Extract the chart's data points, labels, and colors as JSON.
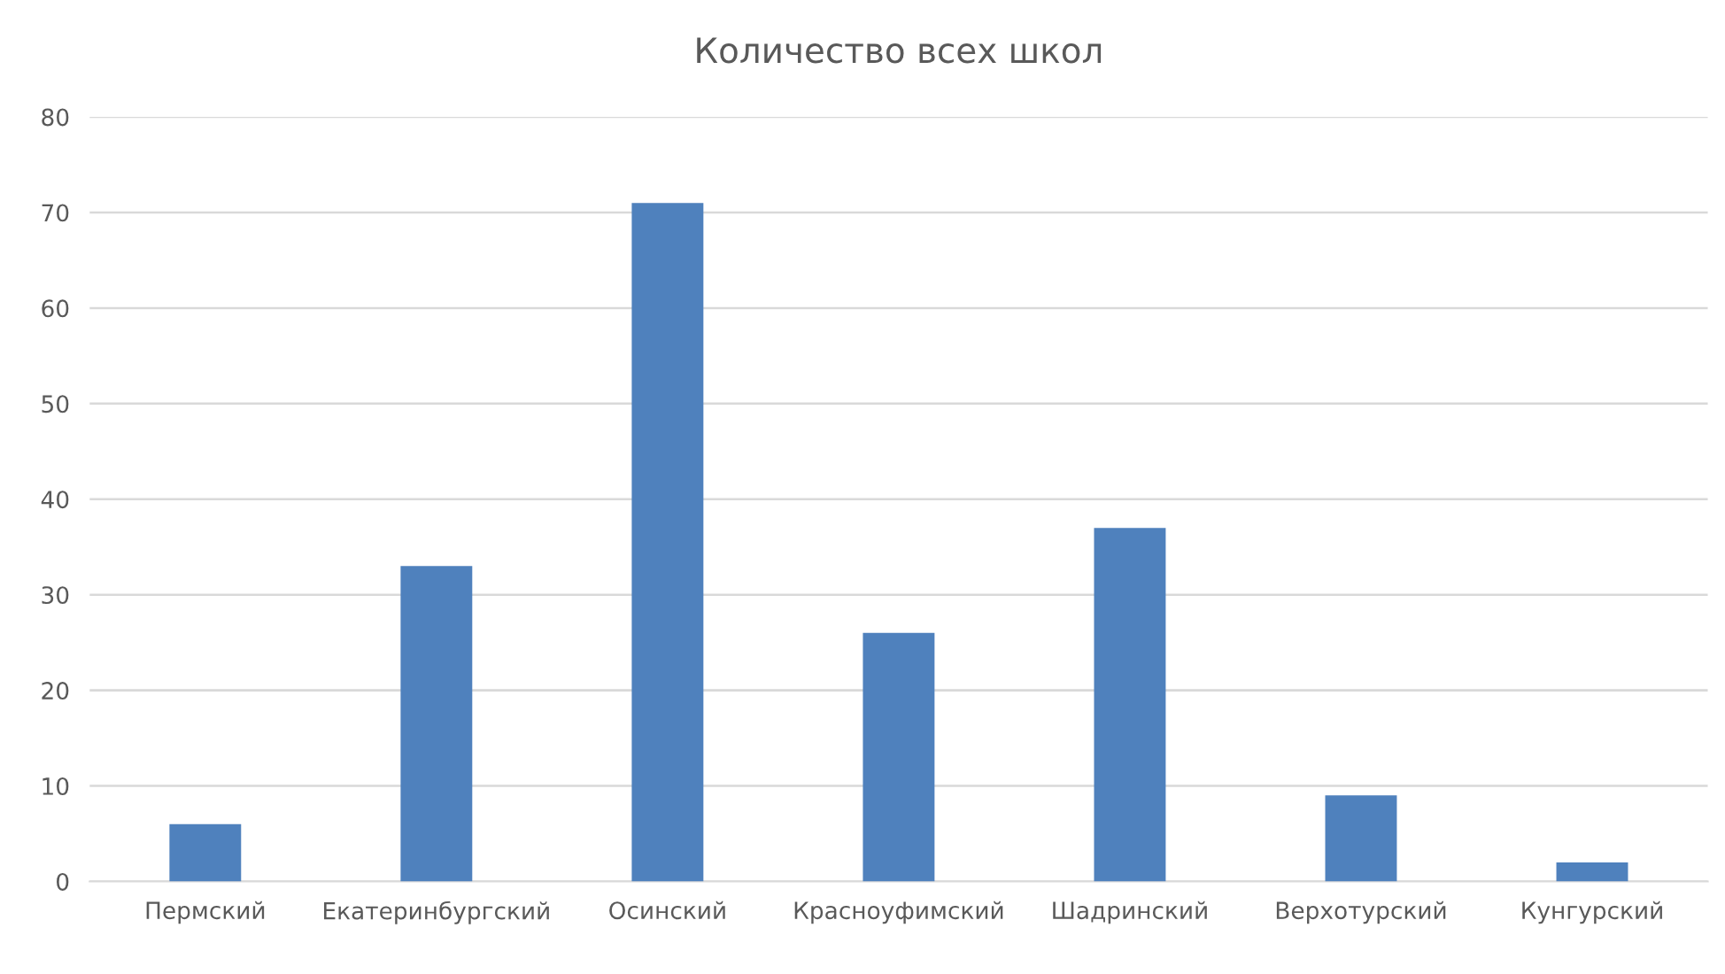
{
  "chart_data": {
    "type": "bar",
    "title": "Количество всех школ",
    "categories": [
      "Пермский",
      "Екатеринбургский",
      "Осинский",
      "Красноуфимский",
      "Шадринский",
      "Верхотурский",
      "Кунгурский"
    ],
    "values": [
      6,
      33,
      71,
      26,
      37,
      9,
      2
    ],
    "color": "#4f81bd",
    "ylim": [
      0,
      80
    ],
    "yticks": [
      0,
      10,
      20,
      30,
      40,
      50,
      60,
      70,
      80
    ],
    "grid": "y",
    "legend": false
  }
}
